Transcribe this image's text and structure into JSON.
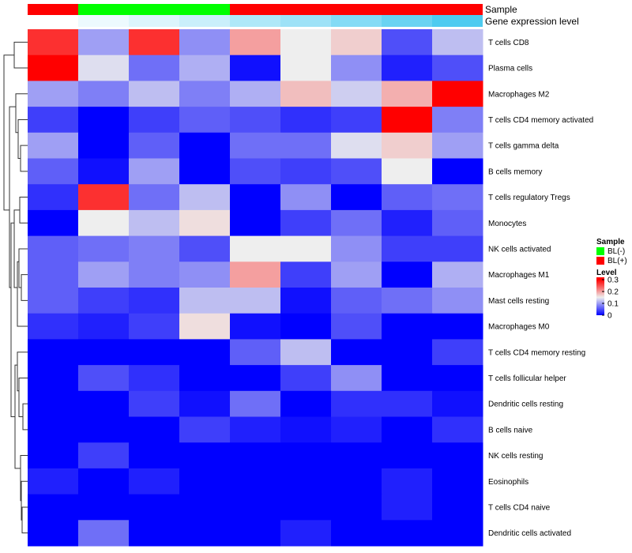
{
  "chart_data": {
    "type": "heatmap",
    "title": "",
    "annotation_tracks": [
      {
        "label": "Sample",
        "kind": "categorical",
        "values": [
          "BL(+)",
          "BL(-)",
          "BL(-)",
          "BL(-)",
          "BL(+)",
          "BL(+)",
          "BL(+)",
          "BL(+)",
          "BL(+)"
        ]
      },
      {
        "label": "Gene expression level",
        "kind": "continuous",
        "values": [
          0.0,
          0.1,
          0.2,
          0.3,
          0.45,
          0.55,
          0.7,
          0.85,
          1.0
        ]
      }
    ],
    "rows": [
      "T cells CD8",
      "Plasma cells",
      "Macrophages M2",
      "T cells CD4 memory activated",
      "T cells gamma delta",
      "B cells memory",
      "T cells regulatory  Tregs",
      "Monocytes",
      "NK cells activated",
      "Macrophages M1",
      "Mast cells resting",
      "Macrophages M0",
      "T cells CD4 memory resting",
      "T cells follicular helper",
      "Dendritic cells resting",
      "B cells naive",
      "NK cells resting",
      "Eosinophils",
      "T cells CD4 naive",
      "Dendritic cells activated"
    ],
    "values": [
      [
        0.27,
        0.1,
        0.27,
        0.09,
        0.2,
        0.15,
        0.17,
        0.05,
        0.12
      ],
      [
        0.31,
        0.14,
        0.07,
        0.11,
        0.01,
        0.15,
        0.09,
        0.02,
        0.05
      ],
      [
        0.1,
        0.08,
        0.12,
        0.08,
        0.11,
        0.18,
        0.13,
        0.19,
        0.3
      ],
      [
        0.04,
        0.0,
        0.04,
        0.06,
        0.05,
        0.03,
        0.04,
        0.31,
        0.08
      ],
      [
        0.1,
        0.0,
        0.06,
        0.0,
        0.07,
        0.07,
        0.14,
        0.17,
        0.1
      ],
      [
        0.06,
        0.01,
        0.1,
        0.0,
        0.05,
        0.04,
        0.05,
        0.15,
        0.0
      ],
      [
        0.03,
        0.27,
        0.07,
        0.12,
        0.0,
        0.09,
        0.0,
        0.06,
        0.07
      ],
      [
        0.0,
        0.15,
        0.12,
        0.16,
        0.0,
        0.04,
        0.07,
        0.02,
        0.06
      ],
      [
        0.06,
        0.07,
        0.08,
        0.05,
        0.15,
        0.15,
        0.09,
        0.04,
        0.04
      ],
      [
        0.06,
        0.1,
        0.08,
        0.09,
        0.2,
        0.04,
        0.1,
        0.0,
        0.11
      ],
      [
        0.06,
        0.04,
        0.03,
        0.12,
        0.12,
        0.01,
        0.06,
        0.07,
        0.09
      ],
      [
        0.03,
        0.02,
        0.04,
        0.16,
        0.01,
        0.0,
        0.05,
        0.0,
        0.0
      ],
      [
        0.0,
        0.0,
        0.0,
        0.0,
        0.06,
        0.12,
        0.0,
        0.0,
        0.04
      ],
      [
        0.0,
        0.05,
        0.03,
        0.0,
        0.0,
        0.04,
        0.09,
        0.0,
        0.0
      ],
      [
        0.0,
        0.0,
        0.04,
        0.01,
        0.07,
        0.0,
        0.03,
        0.03,
        0.01
      ],
      [
        0.0,
        0.0,
        0.0,
        0.04,
        0.02,
        0.01,
        0.02,
        0.0,
        0.03
      ],
      [
        0.0,
        0.04,
        0.0,
        0.0,
        0.0,
        0.0,
        0.0,
        0.0,
        0.0
      ],
      [
        0.02,
        0.0,
        0.02,
        0.0,
        0.0,
        0.0,
        0.0,
        0.02,
        0.0
      ],
      [
        0.0,
        0.0,
        0.0,
        0.0,
        0.0,
        0.0,
        0.0,
        0.02,
        0.0
      ],
      [
        0.0,
        0.07,
        0.0,
        0.0,
        0.0,
        0.02,
        0.0,
        0.0,
        0.0
      ]
    ],
    "color_scale": {
      "stops": [
        {
          "value": 0.0,
          "color": "#0000ff"
        },
        {
          "value": 0.15,
          "color": "#eeeeee"
        },
        {
          "value": 0.3,
          "color": "#ff0000"
        }
      ],
      "range": [
        0,
        0.32
      ]
    },
    "row_dendrogram": true,
    "legend": {
      "sample_title": "Sample",
      "sample_entries": [
        {
          "label": "BL(-)",
          "color": "#00ff00"
        },
        {
          "label": "BL(+)",
          "color": "#ff0000"
        }
      ],
      "level_title": "Level",
      "level_ticks": [
        "0.3",
        "0.2",
        "0.1",
        "0"
      ],
      "level_tick_values": [
        0.3,
        0.2,
        0.1,
        0
      ],
      "placement": "right-middle"
    },
    "annotation_colors": {
      "BL(-)": "#00ff00",
      "BL(+)": "#ff0000",
      "expr_low": "#ffffff",
      "expr_high": "#4ecbf0"
    }
  }
}
